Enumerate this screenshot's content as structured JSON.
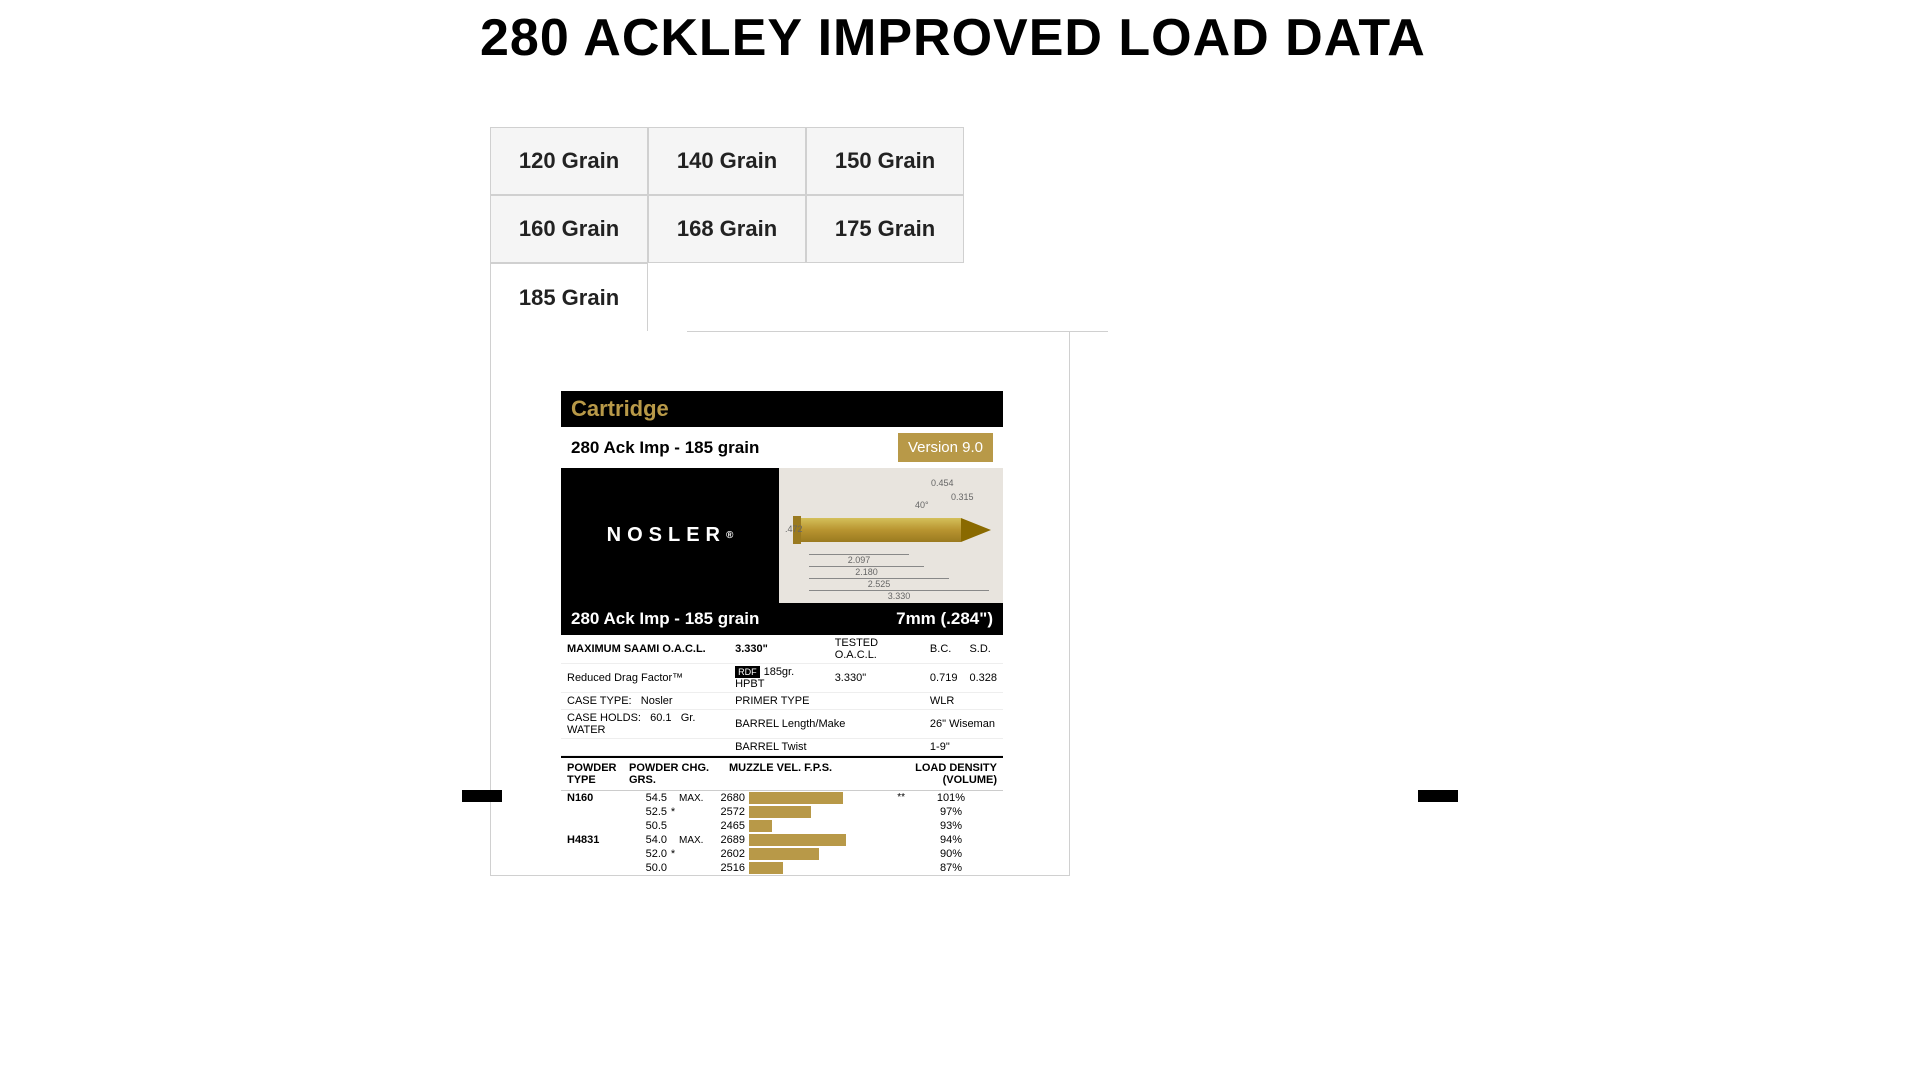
{
  "title": "280 ACKLEY IMPROVED LOAD DATA",
  "tabs": [
    {
      "label": "120 Grain",
      "active": false
    },
    {
      "label": "140 Grain",
      "active": false
    },
    {
      "label": "150 Grain",
      "active": false
    },
    {
      "label": "160 Grain",
      "active": false
    },
    {
      "label": "168 Grain",
      "active": false
    },
    {
      "label": "175 Grain",
      "active": false
    },
    {
      "label": "185 Grain",
      "active": true
    }
  ],
  "card": {
    "header": "Cartridge",
    "subtitle": "280 Ack Imp - 185 grain",
    "version": "Version 9.0",
    "brand": "NOSLER",
    "brand_suffix": "®",
    "footer_left": "280 Ack Imp - 185 grain",
    "footer_right": "7mm (.284\")",
    "dimensions": {
      "d1": "0.454",
      "d2": "0.315",
      "angle": "40°",
      "base": ".472",
      "l1": "2.097",
      "l2": "2.180",
      "l3": "2.525",
      "l4": "3.330"
    }
  },
  "specs": {
    "max_oacl_label": "MAXIMUM SAAMI O.A.C.L.",
    "max_oacl_value": "3.330\"",
    "tested_label": "TESTED O.A.C.L.",
    "bc_label": "B.C.",
    "sd_label": "S.D.",
    "rdf_label": "Reduced Drag Factor™",
    "rdf_badge": "RDF",
    "bullet_desc": "185gr. HPBT",
    "tested_val": "3.330\"",
    "bc_val": "0.719",
    "sd_val": "0.328",
    "case_type_label": "CASE TYPE:",
    "case_type_val": "Nosler",
    "primer_type_label": "PRIMER TYPE",
    "primer_type_val": "WLR",
    "case_holds_label": "CASE HOLDS:",
    "case_holds_val": "60.1",
    "case_holds_unit": "Gr. WATER",
    "barrel_label": "BARREL Length/Make",
    "barrel_val": "26\" Wiseman",
    "twist_label": "BARREL Twist",
    "twist_val": "1-9\""
  },
  "powder_headers": {
    "type": "POWDER TYPE",
    "chg": "POWDER CHG. GRS.",
    "vel": "MUZZLE VEL. F.P.S.",
    "density": "LOAD DENSITY (VOLUME)"
  },
  "powders": [
    {
      "name": "N160",
      "loads": [
        {
          "grs": "54.5",
          "star": "",
          "max": "MAX.",
          "vel": "2680",
          "bar_pct": 60,
          "acc": "**",
          "density": "101%"
        },
        {
          "grs": "52.5",
          "star": "*",
          "max": "",
          "vel": "2572",
          "bar_pct": 40,
          "acc": "",
          "density": "97%"
        },
        {
          "grs": "50.5",
          "star": "",
          "max": "",
          "vel": "2465",
          "bar_pct": 15,
          "acc": "",
          "density": "93%"
        }
      ]
    },
    {
      "name": "H4831",
      "loads": [
        {
          "grs": "54.0",
          "star": "",
          "max": "MAX.",
          "vel": "2689",
          "bar_pct": 62,
          "acc": "",
          "density": "94%"
        },
        {
          "grs": "52.0",
          "star": "*",
          "max": "",
          "vel": "2602",
          "bar_pct": 45,
          "acc": "",
          "density": "90%"
        },
        {
          "grs": "50.0",
          "star": "",
          "max": "",
          "vel": "2516",
          "bar_pct": 22,
          "acc": "",
          "density": "87%"
        }
      ]
    }
  ],
  "colors": {
    "accent": "#b89948",
    "tab_bg": "#f5f5f5",
    "tab_border": "#d0d0d0"
  }
}
